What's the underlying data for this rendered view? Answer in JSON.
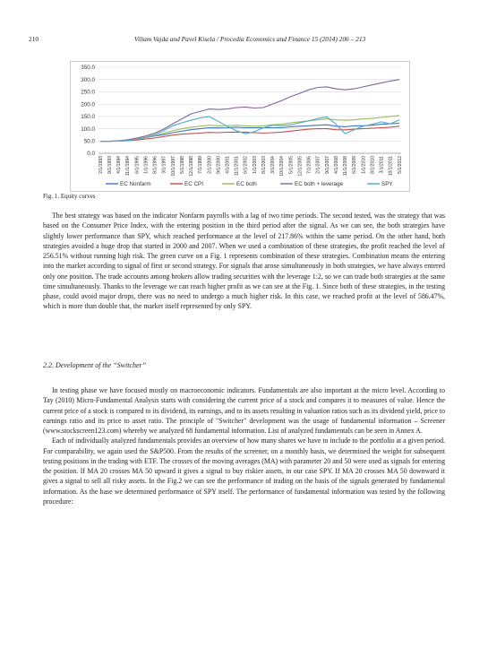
{
  "header": {
    "page_number": "210",
    "running_title": "Viliam Vajda and Pavel Kisela / Procedia Economics and Finance 15 (2014) 206 – 213"
  },
  "chart_data": {
    "type": "line",
    "title": "",
    "xlabel": "",
    "ylabel": "",
    "ylim": [
      0,
      350
    ],
    "yticks": [
      "0.0",
      "50.0",
      "100.0",
      "150.0",
      "200.0",
      "250.0",
      "300.0",
      "350.0"
    ],
    "categories": [
      "2/1/1993",
      "9/1/1993",
      "4/1/1994",
      "11/1/1994",
      "6/1/1995",
      "1/1/1996",
      "8/1/1996",
      "3/1/1997",
      "10/1/1997",
      "5/1/1998",
      "12/1/1998",
      "7/1/1999",
      "2/1/2000",
      "9/1/2000",
      "4/1/2001",
      "11/1/2001",
      "6/1/2002",
      "1/1/2003",
      "8/1/2003",
      "3/1/2004",
      "10/1/2004",
      "5/1/2005",
      "12/1/2005",
      "7/1/2006",
      "2/1/2007",
      "9/1/2007",
      "4/1/2008",
      "11/1/2008",
      "6/1/2009",
      "1/1/2010",
      "8/1/2010",
      "3/1/2011",
      "10/1/2011",
      "5/1/2012"
    ],
    "series": [
      {
        "name": "EC Nonfarm",
        "color": "#4472C4",
        "values": [
          49,
          49,
          50,
          52,
          58,
          64,
          70,
          76,
          84,
          90,
          96,
          100,
          104,
          103,
          104,
          106,
          104,
          104,
          104,
          104,
          104,
          108,
          110,
          112,
          114,
          116,
          110,
          108,
          112,
          112,
          114,
          118,
          120,
          122
        ]
      },
      {
        "name": "EC CPI",
        "color": "#C0504D",
        "values": [
          49,
          49,
          50,
          51,
          54,
          58,
          62,
          68,
          74,
          78,
          80,
          82,
          85,
          84,
          86,
          86,
          86,
          84,
          82,
          84,
          86,
          90,
          94,
          98,
          100,
          100,
          96,
          95,
          98,
          100,
          102,
          104,
          106,
          110
        ]
      },
      {
        "name": "EC both",
        "color": "#9BBB59",
        "values": [
          49,
          49,
          50,
          53,
          58,
          64,
          72,
          82,
          92,
          100,
          106,
          110,
          114,
          112,
          112,
          114,
          112,
          110,
          112,
          116,
          118,
          124,
          128,
          132,
          136,
          140,
          136,
          134,
          136,
          140,
          142,
          146,
          150,
          154
        ]
      },
      {
        "name": "EC both + leverage",
        "color": "#8064A2",
        "values": [
          49,
          49,
          51,
          55,
          62,
          70,
          82,
          98,
          120,
          140,
          160,
          170,
          180,
          178,
          180,
          186,
          188,
          184,
          186,
          200,
          214,
          230,
          244,
          258,
          268,
          270,
          262,
          258,
          262,
          270,
          278,
          286,
          294,
          300
        ]
      },
      {
        "name": "SPY",
        "color": "#4BACC6",
        "values": [
          49,
          49,
          50,
          52,
          56,
          64,
          76,
          92,
          112,
          124,
          134,
          144,
          150,
          130,
          110,
          92,
          80,
          88,
          104,
          114,
          112,
          116,
          124,
          132,
          142,
          148,
          118,
          80,
          96,
          110,
          118,
          128,
          120,
          136
        ]
      }
    ]
  },
  "caption": "Fig. 1. Equity curves",
  "paragraphs_a": [
    "The best strategy was based on the indicator Nonfarm payrolls with a lag of two time periods. The second tested, was the strategy that was based on the Consumer Price Index, with the entering position in the third period after the signal. As we can see, the both strategies have slightly lower performance than SPY, which reached performance at the level of 217.86% within the same period. On the other hand, both strategies avoided a huge drop that started in 2000 and 2007. When we used a combination of these strategies, the profit reached the level of 256.51% without running high risk. The green curve on a Fig. 1 represents combination of these strategies. Combination means the entering into the market according to signal of first or second strategy. For signals that arose simultaneously in both strategies, we have always entered only one position. The trade accounts among brokers allow trading securities with the leverage 1:2, so we can trade both strategies at the same time simultaneously. Thanks to the leverage we can reach higher profit as we can see at the Fig. 1. Since both of these strategies, in the testing phase, could avoid major drops, there was no need to undergo a much higher risk. In this case, we reached profit at the level of 586.47%, which is more than double that, the market itself represented by only SPY."
  ],
  "section_title": "2.2. Development of the “Switcher”",
  "paragraphs_b": [
    "In testing phase we have focused mostly on macroeconomic indicators. Fundamentals are also important at the micro level. According to Tay (2010) Micro-Fundamental Analysis starts with considering the current price of a stock and compares it to measures of value. Hence the current price of a stock is compared to its dividend, its earnings, and to its assets resulting in valuation ratios such as its dividend yield, price to earnings ratio and its price to asset ratio. The principle of \"Switcher\" development was the usage of fundamental information – Screener (www.stockscreen123.com) whereby we analyzed 68 fundamental information. List of analyzed fundamentals can be seen in Annex A.",
    "Each of individually analyzed fundamentals provides an overview of how many shares we have to include to the portfolio at a given period. For comparability, we again used the S&P500. From the results of the screener, on a monthly basis, we determined the weight for subsequent testing positions in the trading with ETF. The crosses of the moving averages (MA) with parameter 20 and 50 were used as signals for entering the position. If MA 20 crosses MA 50 upward it gives a signal to buy riskier assets, in our case SPY. If MA 20 crosses MA 50 downward it gives a signal to sell all risky assets. In the Fig.2 we can see the performance of trading on the basis of the signals generated by fundamental information. As the base we determined performance of SPY itself. The performance of fundamental information was tested by the following procedure:"
  ]
}
